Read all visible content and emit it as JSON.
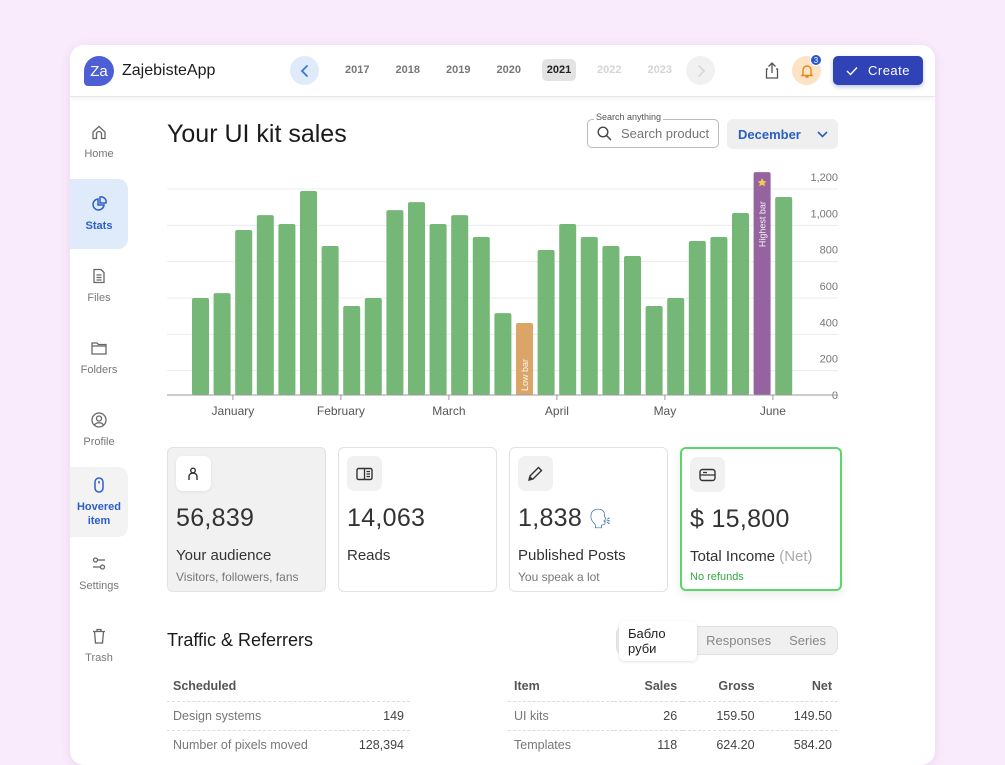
{
  "app": {
    "logo_initials": "Za",
    "name": "ZajebisteApp",
    "years": [
      {
        "label": "2017",
        "state": "normal"
      },
      {
        "label": "2018",
        "state": "normal"
      },
      {
        "label": "2019",
        "state": "normal"
      },
      {
        "label": "2020",
        "state": "normal"
      },
      {
        "label": "2021",
        "state": "active"
      },
      {
        "label": "2022",
        "state": "disabled"
      },
      {
        "label": "2023",
        "state": "disabled"
      }
    ],
    "notification_count": "3",
    "create_label": "Create"
  },
  "sidebar": {
    "items": [
      {
        "label": "Home",
        "icon": "home-icon",
        "state": "normal"
      },
      {
        "label": "Stats",
        "icon": "pie-chart-icon",
        "state": "active"
      },
      {
        "label": "Files",
        "icon": "file-icon",
        "state": "normal"
      },
      {
        "label": "Folders",
        "icon": "folder-icon",
        "state": "normal"
      },
      {
        "label": "Profile",
        "icon": "user-circle-icon",
        "state": "normal"
      },
      {
        "label": "Hovered item",
        "icon": "mouse-icon",
        "state": "hovered"
      },
      {
        "label": "Settings",
        "icon": "sliders-icon",
        "state": "normal"
      },
      {
        "label": "Trash",
        "icon": "trash-icon",
        "state": "normal"
      }
    ]
  },
  "main": {
    "title": "Your UI kit sales",
    "search": {
      "legend": "Search anything",
      "placeholder": "Search product",
      "value": ""
    },
    "month_select": "December"
  },
  "colors": {
    "bar": "#6db36f",
    "low_bar": "#d9a060",
    "high_bar": "#8f5c9b",
    "accent": "#2f43b7",
    "income_border": "#5cd66a"
  },
  "chart_data": {
    "type": "bar",
    "title": "Your UI kit sales",
    "xlabel": "",
    "ylabel": "",
    "ylim": [
      0,
      1200
    ],
    "yticks": [
      0,
      200,
      400,
      600,
      800,
      1000,
      1200
    ],
    "ytick_labels": [
      "0",
      "200",
      "400",
      "600",
      "800",
      "1,000",
      "1,200"
    ],
    "month_labels": [
      "January",
      "February",
      "March",
      "April",
      "May",
      "June"
    ],
    "month_tick_after_bar_index": [
      1,
      6,
      11,
      16,
      21,
      26
    ],
    "grid": true,
    "y_axis_position": "right",
    "values": [
      534,
      561,
      908,
      990,
      941,
      1123,
      820,
      490,
      534,
      1018,
      1062,
      941,
      990,
      870,
      451,
      396,
      798,
      941,
      870,
      820,
      765,
      490,
      534,
      848,
      870,
      1002,
      1227,
      1090
    ],
    "annotations": [
      {
        "bar_index": 15,
        "label": "Low bar",
        "kind": "low"
      },
      {
        "bar_index": 26,
        "label": "Highest bar",
        "kind": "high",
        "icon": "star-icon"
      }
    ]
  },
  "cards": [
    {
      "icon": "person-icon",
      "value": "56,839",
      "label": "Your audience",
      "label_muted": "",
      "sub": "Visitors, followers, fans",
      "style": "grey",
      "emoji": ""
    },
    {
      "icon": "book-open-icon",
      "value": "14,063",
      "label": "Reads",
      "label_muted": "",
      "sub": "",
      "style": "normal",
      "emoji": ""
    },
    {
      "icon": "pencil-icon",
      "value": "1,838",
      "label": "Published Posts",
      "label_muted": "",
      "sub": "You speak a lot",
      "style": "normal",
      "emoji": "🗣"
    },
    {
      "icon": "credit-card-icon",
      "value": "$ 15,800",
      "label": "Total Income",
      "label_muted": "(Net)",
      "sub": "No refunds",
      "style": "green",
      "emoji": ""
    }
  ],
  "traffic": {
    "title": "Traffic & Referrers",
    "tabs": [
      {
        "label": "Бабло руби",
        "active": true
      },
      {
        "label": "Responses",
        "active": false
      },
      {
        "label": "Series",
        "active": false
      }
    ],
    "left_table": {
      "headers": [
        "Scheduled",
        ""
      ],
      "rows": [
        [
          "Design systems",
          "149"
        ],
        [
          "Number of pixels moved",
          "128,394"
        ]
      ]
    },
    "right_table": {
      "headers": [
        "Item",
        "Sales",
        "Gross",
        "Net"
      ],
      "rows": [
        [
          "UI kits",
          "26",
          "159.50",
          "149.50"
        ],
        [
          "Templates",
          "118",
          "624.20",
          "584.20"
        ]
      ]
    }
  }
}
